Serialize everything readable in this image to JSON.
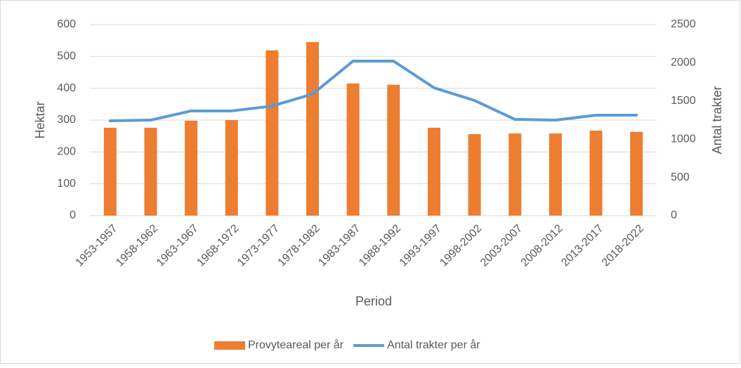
{
  "chart_data": {
    "type": "bar-line",
    "xlabel": "Period",
    "ylabel": "Hektar",
    "y2label": "Antal trakter",
    "categories": [
      "1953-1957",
      "1958-1962",
      "1963-1967",
      "1968-1972",
      "1973-1977",
      "1978-1982",
      "1983-1987",
      "1988-1992",
      "1993-1997",
      "1998-2002",
      "2003-2007",
      "2008-2012",
      "2013-2017",
      "2018-2022"
    ],
    "series": [
      {
        "name": "Provyteareal per år",
        "type": "bar",
        "color": "#ed7d31",
        "axis": "y",
        "values": [
          276,
          276,
          298,
          300,
          519,
          545,
          415,
          411,
          276,
          256,
          258,
          258,
          267,
          263
        ]
      },
      {
        "name": "Antal trakter per år",
        "type": "line",
        "color": "#5b9bd5",
        "axis": "y2",
        "values": [
          1241,
          1250,
          1370,
          1370,
          1434,
          1590,
          2022,
          2022,
          1673,
          1507,
          1259,
          1250,
          1314,
          1314
        ]
      }
    ],
    "ylim": [
      0,
      600
    ],
    "yticks": [
      0,
      100,
      200,
      300,
      400,
      500,
      600
    ],
    "y2lim": [
      0,
      2500
    ],
    "y2ticks": [
      0,
      500,
      1000,
      1500,
      2000,
      2500
    ],
    "grid": true,
    "legend": "bottom"
  }
}
